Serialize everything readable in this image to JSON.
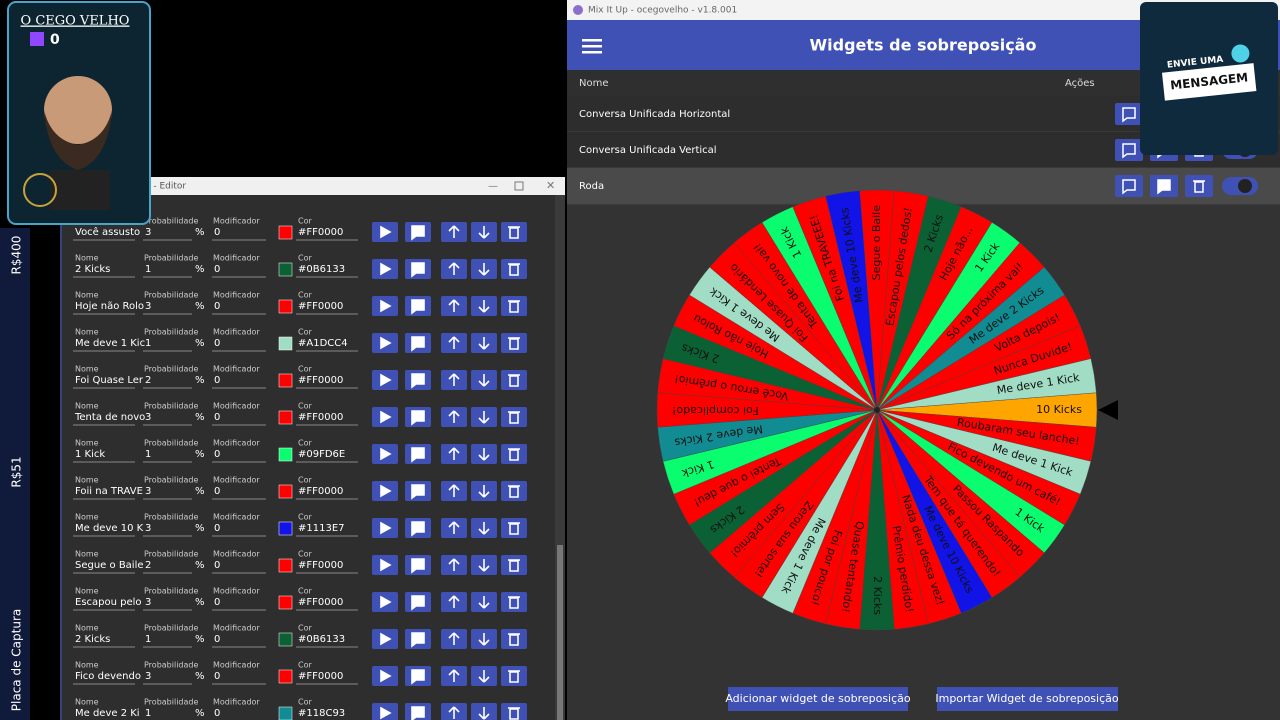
{
  "overlay": {
    "name": "O CEGO VELHO",
    "count": "0",
    "message_top": "ENVIE UMA",
    "message_bottom": "MENSAGEM"
  },
  "sidebar": [
    "R$400",
    "R$51",
    "Placa de Captura"
  ],
  "editor": {
    "title": "o - Editor",
    "field_labels": {
      "name": "Nome",
      "probability": "Probabilidade",
      "percent": "%",
      "modifier": "Modificador",
      "color": "Cor"
    },
    "rows": [
      {
        "name": "Você assusto",
        "probability": 3,
        "modifier": 0,
        "color": "#FF0000"
      },
      {
        "name": "2 Kicks",
        "probability": 1,
        "modifier": 0,
        "color": "#0B6133"
      },
      {
        "name": "Hoje não Rolo",
        "probability": 3,
        "modifier": 0,
        "color": "#FF0000"
      },
      {
        "name": "Me deve 1 Kic",
        "probability": 1,
        "modifier": 0,
        "color": "#A1DCC4"
      },
      {
        "name": "Foi Quase Ler",
        "probability": 2,
        "modifier": 0,
        "color": "#FF0000"
      },
      {
        "name": "Tenta de novo",
        "probability": 3,
        "modifier": 0,
        "color": "#FF0000"
      },
      {
        "name": "1 Kick",
        "probability": 1,
        "modifier": 0,
        "color": "#09FD6E"
      },
      {
        "name": "Foii na TRAVE",
        "probability": 3,
        "modifier": 0,
        "color": "#FF0000"
      },
      {
        "name": "Me deve 10 K",
        "probability": 3,
        "modifier": 0,
        "color": "#1113E7"
      },
      {
        "name": "Segue o Baile",
        "probability": 2,
        "modifier": 0,
        "color": "#FF0000"
      },
      {
        "name": "Escapou pelo",
        "probability": 3,
        "modifier": 0,
        "color": "#FF0000"
      },
      {
        "name": "2 Kicks",
        "probability": 1,
        "modifier": 0,
        "color": "#0B6133"
      },
      {
        "name": "Fico devendo",
        "probability": 3,
        "modifier": 0,
        "color": "#FF0000"
      },
      {
        "name": "Me deve 2 Ki",
        "probability": 1,
        "modifier": 0,
        "color": "#118C93"
      }
    ]
  },
  "app": {
    "window_title": "Mix It Up - ocegovelho - v1.8.001",
    "header": "Widgets de sobreposição",
    "columns": [
      "Nome",
      "Ações"
    ],
    "widgets": [
      "Conversa Unificada Horizontal",
      "Conversa Unificada Vertical",
      "Roda"
    ],
    "wheel": [
      {
        "label": "10 Kicks",
        "color": "#FFA500"
      },
      {
        "label": "Roubaram seu lanche!",
        "color": "#FF0000"
      },
      {
        "label": "Me deve 1 Kick",
        "color": "#A1DCC4"
      },
      {
        "label": "Fico devendo um café!",
        "color": "#FF0000"
      },
      {
        "label": "1 Kick",
        "color": "#09FD6E"
      },
      {
        "label": "Passou Raspando",
        "color": "#FF0000"
      },
      {
        "label": "Tem que tá querendo!",
        "color": "#FF0000"
      },
      {
        "label": "Me deve 10 Kicks",
        "color": "#1113E7"
      },
      {
        "label": "Nada deu dessa vez!",
        "color": "#FF0000"
      },
      {
        "label": "Prêmio perdido!",
        "color": "#FF0000"
      },
      {
        "label": "2 Kicks",
        "color": "#0B6133"
      },
      {
        "label": "Quase tentando!",
        "color": "#FF0000"
      },
      {
        "label": "Foi por pouco!",
        "color": "#FF0000"
      },
      {
        "label": "Me deve 1 Kick",
        "color": "#A1DCC4"
      },
      {
        "label": "Zerou sua sorte!",
        "color": "#FF0000"
      },
      {
        "label": "Sem prêmio!",
        "color": "#FF0000"
      },
      {
        "label": "2 Kicks",
        "color": "#0B6133"
      },
      {
        "label": "Tentei o que deu!",
        "color": "#FF0000"
      },
      {
        "label": "1 Kick",
        "color": "#09FD6E"
      },
      {
        "label": "Me deve 2 Kicks",
        "color": "#118C93"
      },
      {
        "label": "Foi complicado!",
        "color": "#FF0000"
      },
      {
        "label": "Você errou o prêmio!",
        "color": "#FF0000"
      },
      {
        "label": "2 Kicks",
        "color": "#0B6133"
      },
      {
        "label": "Hoje não Rolou",
        "color": "#FF0000"
      },
      {
        "label": "Me deve 1 Kick",
        "color": "#A1DCC4"
      },
      {
        "label": "Foi Quase Lendário",
        "color": "#FF0000"
      },
      {
        "label": "Tenta de novo vai!",
        "color": "#FF0000"
      },
      {
        "label": "1 Kick",
        "color": "#09FD6E"
      },
      {
        "label": "Foi na TRAVEEE!",
        "color": "#FF0000"
      },
      {
        "label": "Me deve 10 Kicks",
        "color": "#1113E7"
      },
      {
        "label": "Segue o Baile",
        "color": "#FF0000"
      },
      {
        "label": "Escapou pelos dedos!",
        "color": "#FF0000"
      },
      {
        "label": "2 Kicks",
        "color": "#0B6133"
      },
      {
        "label": "Hoje não...",
        "color": "#FF0000"
      },
      {
        "label": "1 Kick",
        "color": "#09FD6E"
      },
      {
        "label": "Só na próxima vai!",
        "color": "#FF0000"
      },
      {
        "label": "Me deve 2 Kicks",
        "color": "#118C93"
      },
      {
        "label": "Volta depois!",
        "color": "#FF0000"
      },
      {
        "label": "Nunca Duvide!",
        "color": "#FF0000"
      },
      {
        "label": "Me deve 1 Kick",
        "color": "#A1DCC4"
      }
    ],
    "buttons": [
      "Adicionar widget de sobreposição",
      "Importar Widget de sobreposição"
    ]
  }
}
